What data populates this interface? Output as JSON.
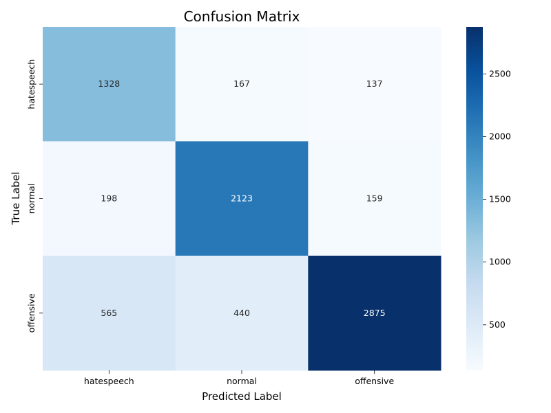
{
  "chart_data": {
    "type": "heatmap",
    "title": "Confusion Matrix",
    "xlabel": "Predicted Label",
    "ylabel": "True Label",
    "x_categories": [
      "hatespeech",
      "normal",
      "offensive"
    ],
    "y_categories": [
      "hatespeech",
      "normal",
      "offensive"
    ],
    "matrix": [
      [
        1328,
        167,
        137
      ],
      [
        198,
        2123,
        159
      ],
      [
        565,
        440,
        2875
      ]
    ],
    "colormap": "Blues",
    "color_range": [
      137,
      2875
    ],
    "colorbar_ticks": [
      500,
      1000,
      1500,
      2000,
      2500
    ],
    "colorbar_tick_labels": [
      "500",
      "1000",
      "1500",
      "2000",
      "2500"
    ]
  }
}
